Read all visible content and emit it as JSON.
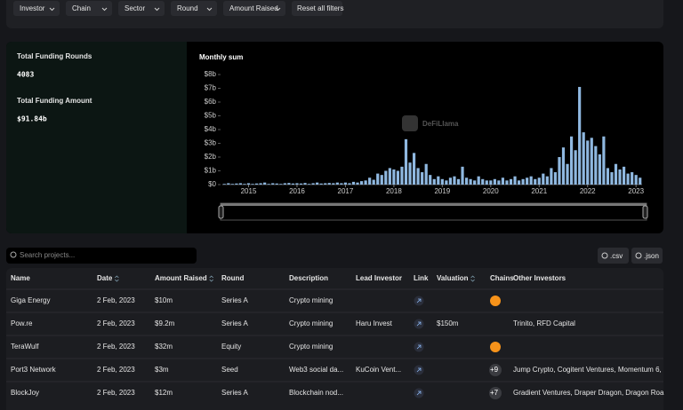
{
  "filters": [
    "Investor",
    "Chain",
    "Sector",
    "Round",
    "Amount Raised"
  ],
  "reset": "Reset all filters",
  "stats": [
    {
      "label": "Total Funding Rounds",
      "value": "4083"
    },
    {
      "label": "Total Funding Amount",
      "value": "$91.84b"
    }
  ],
  "chart_data": {
    "type": "bar",
    "title": "Monthly sum",
    "watermark": "DeFiLlama",
    "categories": [
      null,
      null,
      null,
      null,
      null,
      null,
      "2015",
      null,
      null,
      null,
      null,
      null,
      null,
      null,
      null,
      null,
      null,
      null,
      "2016",
      null,
      null,
      null,
      null,
      null,
      null,
      null,
      null,
      null,
      null,
      null,
      "2017",
      null,
      null,
      null,
      null,
      null,
      null,
      null,
      null,
      null,
      null,
      null,
      "2018",
      null,
      null,
      null,
      null,
      null,
      null,
      null,
      null,
      null,
      null,
      null,
      "2019",
      null,
      null,
      null,
      null,
      null,
      null,
      null,
      null,
      null,
      null,
      null,
      "2020",
      null,
      null,
      null,
      null,
      null,
      null,
      null,
      null,
      null,
      null,
      null,
      "2021",
      null,
      null,
      null,
      null,
      null,
      null,
      null,
      null,
      null,
      null,
      null,
      "2022",
      null,
      null,
      null,
      null,
      null,
      null,
      null,
      null,
      null,
      null,
      null,
      "2023",
      null
    ],
    "values": [
      0.05,
      0.1,
      0.05,
      0.08,
      0.1,
      0.05,
      0.1,
      0.05,
      0.08,
      0.1,
      0.15,
      0.05,
      0.1,
      0.08,
      0.05,
      0.1,
      0.12,
      0.08,
      0.1,
      0.08,
      0.12,
      0.05,
      0.1,
      0.15,
      0.08,
      0.1,
      0.12,
      0.1,
      0.15,
      0.1,
      0.15,
      0.1,
      0.2,
      0.15,
      0.25,
      0.3,
      0.5,
      0.35,
      0.8,
      0.7,
      1.0,
      1.2,
      1.1,
      1.0,
      1.3,
      3.3,
      1.6,
      2.3,
      1.2,
      0.9,
      1.5,
      0.7,
      0.4,
      0.6,
      0.4,
      0.3,
      0.5,
      0.6,
      0.4,
      1.3,
      0.5,
      0.4,
      0.3,
      0.6,
      0.4,
      0.3,
      0.3,
      0.4,
      0.3,
      0.5,
      0.3,
      0.4,
      0.6,
      0.3,
      0.4,
      0.5,
      0.6,
      0.4,
      0.5,
      0.8,
      0.6,
      1.2,
      0.9,
      2.0,
      2.7,
      1.5,
      3.5,
      2.5,
      7.1,
      3.8,
      3.2,
      3.4,
      2.8,
      2.2,
      3.5,
      1.2,
      0.9,
      1.5,
      1.1,
      1.3,
      0.8,
      0.9,
      0.7,
      0.5
    ],
    "color": "#8fb8e0",
    "ylim": [
      0,
      8
    ],
    "yticks": [
      {
        "value": 0,
        "label": "$0"
      },
      {
        "value": 1,
        "label": "$1b"
      },
      {
        "value": 2,
        "label": "$2b"
      },
      {
        "value": 3,
        "label": "$3b"
      },
      {
        "value": 4,
        "label": "$4b"
      },
      {
        "value": 5,
        "label": "$5b"
      },
      {
        "value": 6,
        "label": "$6b"
      },
      {
        "value": 7,
        "label": "$7b"
      },
      {
        "value": 8,
        "label": "$8b"
      }
    ]
  },
  "search_placeholder": "Search projects...",
  "export": [
    ".csv",
    ".json"
  ],
  "table": {
    "columns": [
      "Name",
      "Date",
      "Amount Raised",
      "Round",
      "Description",
      "Lead Investor",
      "Link",
      "Valuation",
      "Chains",
      "Other Investors"
    ],
    "rows": [
      [
        "Giga Energy",
        "2 Feb, 2023",
        "$10m",
        "Series A",
        "Crypto mining",
        null,
        null,
        null,
        null,
        null
      ],
      [
        "Pow.re",
        "2 Feb, 2023",
        "$9.2m",
        "Series A",
        "Crypto mining",
        "Haru Invest",
        null,
        "$150m",
        null,
        "Trinito, RFD Capital"
      ],
      [
        "TeraWulf",
        "2 Feb, 2023",
        "$32m",
        "Equity",
        "Crypto mining",
        null,
        null,
        null,
        null,
        null
      ],
      [
        "Port3 Network",
        "2 Feb, 2023",
        "$3m",
        "Seed",
        "Web3 social da...",
        "KuCoin Vent...",
        null,
        null,
        "+9",
        "Jump Crypto, Cogitent Ventures, Momentum 6,"
      ],
      [
        "BlockJoy",
        "2 Feb, 2023",
        "$12m",
        "Series A",
        "Blockchain nod...",
        null,
        null,
        null,
        "+7",
        "Gradient Ventures, Draper Dragon, Dragon Roa"
      ]
    ]
  }
}
